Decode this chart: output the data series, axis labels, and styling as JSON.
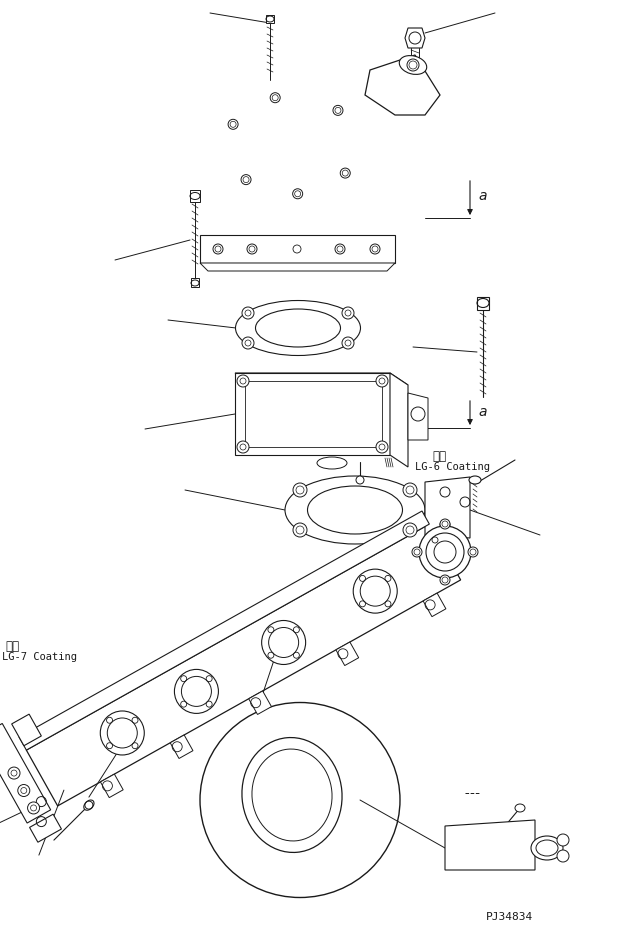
{
  "bg_color": "#ffffff",
  "lc": "#1a1a1a",
  "part_id": "PJ34834",
  "label_lg6_cn": "屢布",
  "label_lg6_en": "LG-6 Coating",
  "label_lg7_cn": "屢布",
  "label_lg7_en": "LG-7 Coating",
  "ann_a": "a"
}
